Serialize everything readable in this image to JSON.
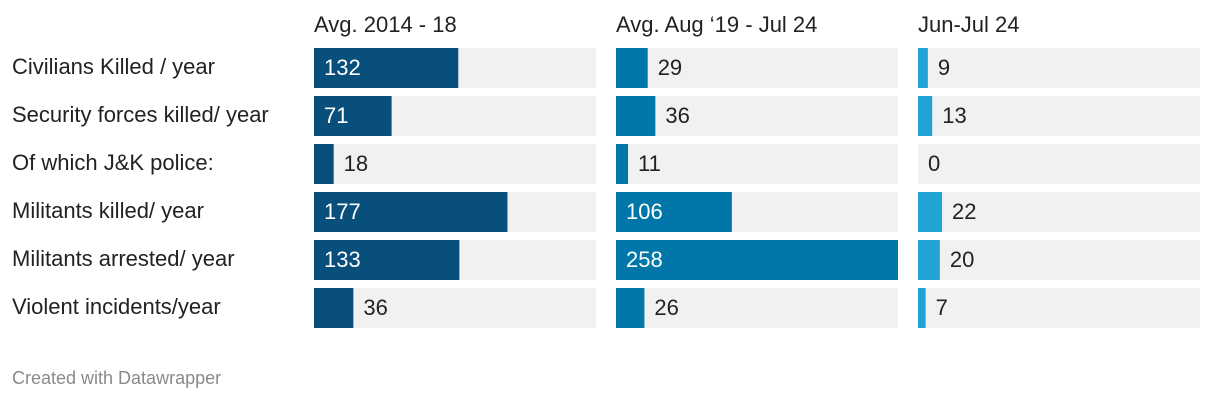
{
  "chart_data": {
    "type": "bar",
    "orientation": "horizontal",
    "categories": [
      "Civilians Killed / year",
      "Security forces killed/ year",
      "Of which J&K police:",
      "Militants killed/ year",
      "Militants arrested/ year",
      "Violent incidents/year"
    ],
    "series": [
      {
        "name": "Avg. 2014 - 18",
        "color": "#084f7b",
        "values": [
          132,
          71,
          18,
          177,
          133,
          36
        ]
      },
      {
        "name": "Avg. Aug ‘19 - Jul 24",
        "color": "#0077a8",
        "values": [
          29,
          36,
          11,
          106,
          258,
          26
        ]
      },
      {
        "name": "Jun-Jul 24",
        "color": "#21a3d4",
        "values": [
          9,
          13,
          0,
          22,
          20,
          7
        ]
      }
    ],
    "background_color": "#f1f1f1",
    "label_inside_color": "#ffffff",
    "label_outside_color": "#222222",
    "xlim": [
      0,
      258
    ]
  },
  "footer": {
    "credit": "Created with Datawrapper"
  }
}
